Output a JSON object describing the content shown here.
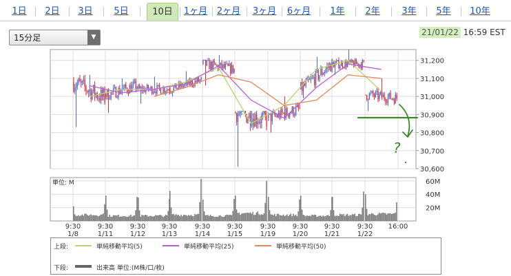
{
  "tabs": [
    {
      "label": "1日",
      "active": false
    },
    {
      "label": "2日",
      "active": false
    },
    {
      "label": "3日",
      "active": false
    },
    {
      "label": "5日",
      "active": false
    },
    {
      "label": "10日",
      "active": true
    },
    {
      "label": "1ヶ月",
      "active": false
    },
    {
      "label": "2ヶ月",
      "active": false
    },
    {
      "label": "3ヶ月",
      "active": false
    },
    {
      "label": "6ヶ月",
      "active": false
    },
    {
      "label": "1年",
      "active": false
    },
    {
      "label": "2年",
      "active": false
    },
    {
      "label": "3年",
      "active": false
    },
    {
      "label": "5年",
      "active": false
    },
    {
      "label": "10年",
      "active": false
    }
  ],
  "interval": {
    "selected": "15分足"
  },
  "timestamp": {
    "date": "21/01/22",
    "time": "16:59 EST"
  },
  "legend": {
    "upper_label": "上段:",
    "lower_label": "下段:",
    "ma5": "単純移動平均(5)",
    "ma25": "単純移動平均(25)",
    "ma50": "単純移動平均(50)",
    "volume": "出来高 単位:(M株/口/枚)"
  },
  "colors": {
    "ma5": "#b9d36a",
    "ma25": "#b85fd6",
    "ma50": "#e08a5a",
    "up": "#4a62c8",
    "down": "#d7262d",
    "volume": "#777777",
    "annotation": "#3a8a2a"
  },
  "annotation": {
    "text": "?"
  },
  "chart_data": [
    {
      "type": "candlestick",
      "interval": "15分足",
      "ylim": [
        30600,
        31260
      ],
      "yticks": [
        31200,
        31100,
        31000,
        30900,
        30800,
        30700,
        30600
      ],
      "ytick_labels": [
        "31,200",
        "31,100",
        "31,000",
        "30,900",
        "30,800",
        "30,700",
        "30,600"
      ],
      "sessions": [
        {
          "date": "1/8",
          "time": "9:30",
          "open": 31080,
          "close": 30990,
          "high": 31120,
          "low": 30830
        },
        {
          "date": "1/11",
          "time": "9:30",
          "open": 31010,
          "close": 31060,
          "high": 31100,
          "low": 30910
        },
        {
          "date": "1/12",
          "time": "9:30",
          "open": 31040,
          "close": 31040,
          "high": 31110,
          "low": 30960
        },
        {
          "date": "1/13",
          "time": "9:30",
          "open": 31040,
          "close": 31090,
          "high": 31140,
          "low": 31000
        },
        {
          "date": "1/14",
          "time": "9:30",
          "open": 31180,
          "close": 31150,
          "high": 31230,
          "low": 31060
        },
        {
          "date": "1/15",
          "time": "9:30",
          "open": 30910,
          "close": 30870,
          "high": 30920,
          "low": 30610
        },
        {
          "date": "1/19",
          "time": "9:30",
          "open": 30880,
          "close": 30930,
          "high": 31000,
          "low": 30800
        },
        {
          "date": "1/20",
          "time": "9:30",
          "open": 31040,
          "close": 31180,
          "high": 31220,
          "low": 30990
        },
        {
          "date": "1/21",
          "time": "9:30",
          "open": 31180,
          "close": 31180,
          "high": 31260,
          "low": 31120
        },
        {
          "date": "1/22",
          "time": "9:30",
          "open": 31010,
          "close": 30990,
          "high": 31100,
          "low": 30920
        }
      ],
      "moving_averages": [
        {
          "name": "単純移動平均(5)",
          "values": [
            31000,
            31040,
            31040,
            31080,
            31160,
            30850,
            30950,
            31150,
            31200,
            31030
          ]
        },
        {
          "name": "単純移動平均(25)",
          "values": [
            31060,
            31020,
            31040,
            31070,
            31170,
            30980,
            30880,
            31050,
            31180,
            31150
          ]
        },
        {
          "name": "単純移動平均(50)",
          "values": [
            null,
            null,
            31000,
            31050,
            31120,
            31080,
            30950,
            30980,
            31120,
            31100
          ]
        }
      ]
    },
    {
      "type": "bar",
      "title_prefix": "単位:",
      "unit": "M",
      "ylim": [
        0,
        65
      ],
      "yticks": [
        60,
        40,
        20
      ],
      "ytick_labels": [
        "60M",
        "40M",
        "20M"
      ],
      "x_tick_times": [
        "9:30",
        "9:30",
        "9:30",
        "9:30",
        "9:30",
        "9:30",
        "9:30",
        "9:30",
        "9:30",
        "9:30",
        "16:00"
      ],
      "x_tick_dates": [
        "1/8",
        "1/11",
        "1/12",
        "1/13",
        "1/14",
        "1/15",
        "1/19",
        "1/20",
        "1/21",
        "1/22",
        ""
      ],
      "session_open_volume": [
        22,
        38,
        35,
        45,
        32,
        38,
        36,
        38,
        36,
        40
      ],
      "session_close_volume": [
        25,
        36,
        33,
        63,
        33,
        60,
        32,
        36,
        44,
        28
      ],
      "session_typical_volume": [
        7,
        6,
        6,
        7,
        6,
        9,
        7,
        6,
        7,
        8
      ]
    }
  ]
}
